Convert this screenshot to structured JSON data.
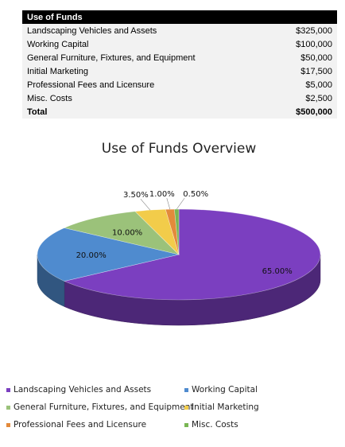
{
  "table": {
    "header": "Use of Funds",
    "rows": [
      {
        "label": "Landscaping Vehicles and Assets",
        "amount": "$325,000"
      },
      {
        "label": "Working Capital",
        "amount": "$100,000"
      },
      {
        "label": "General Furniture, Fixtures, and Equipment",
        "amount": "$50,000"
      },
      {
        "label": "Initial Marketing",
        "amount": "$17,500"
      },
      {
        "label": "Professional Fees and Licensure",
        "amount": "$5,000"
      },
      {
        "label": "Misc. Costs",
        "amount": "$2,500"
      }
    ],
    "total_label": "Total",
    "total_amount": "$500,000"
  },
  "chart_data": {
    "type": "pie",
    "style": "3d",
    "title": "Use of Funds Overview",
    "legend_position": "bottom",
    "slices": [
      {
        "name": "Landscaping Vehicles and Assets",
        "value": 65.0,
        "label": "65.00%",
        "color": "#7b3fc0"
      },
      {
        "name": "Working Capital",
        "value": 20.0,
        "label": "20.00%",
        "color": "#4f8bcf"
      },
      {
        "name": "General Furniture, Fixtures, and Equipment",
        "value": 10.0,
        "label": "10.00%",
        "color": "#9bc27a"
      },
      {
        "name": "Initial Marketing",
        "value": 3.5,
        "label": "3.50%",
        "color": "#f2cc4a"
      },
      {
        "name": "Professional Fees and Licensure",
        "value": 1.0,
        "label": "1.00%",
        "color": "#e38a3b"
      },
      {
        "name": "Misc. Costs",
        "value": 0.5,
        "label": "0.50%",
        "color": "#79b653"
      }
    ]
  }
}
